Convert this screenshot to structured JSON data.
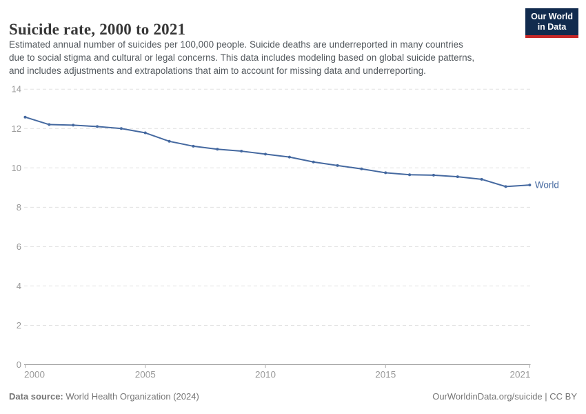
{
  "header": {
    "title": "Suicide rate, 2000 to 2021",
    "subtitle_lines": [
      "Estimated annual number of suicides per 100,000 people. Suicide deaths are underreported in many countries",
      "due to social stigma and cultural or legal concerns. This data includes modeling based on global suicide patterns,",
      "and includes adjustments and extrapolations that aim to account for missing data and underreporting."
    ],
    "logo": {
      "line1": "Our World",
      "line2": "in Data"
    }
  },
  "chart_data": {
    "type": "line",
    "title": "Suicide rate, 2000 to 2021",
    "xlabel": "",
    "ylabel": "",
    "xlim": [
      2000,
      2021
    ],
    "ylim": [
      0,
      14
    ],
    "x_ticks": [
      2000,
      2005,
      2010,
      2015,
      2021
    ],
    "y_ticks": [
      0,
      2,
      4,
      6,
      8,
      10,
      12,
      14
    ],
    "grid": "horizontal-dashed",
    "legend_position": "end-of-line",
    "x": [
      2000,
      2001,
      2002,
      2003,
      2004,
      2005,
      2006,
      2007,
      2008,
      2009,
      2010,
      2011,
      2012,
      2013,
      2014,
      2015,
      2016,
      2017,
      2018,
      2019,
      2020,
      2021
    ],
    "series": [
      {
        "name": "World",
        "color": "#4569a0",
        "values": [
          12.58,
          12.2,
          12.17,
          12.1,
          12.0,
          11.78,
          11.35,
          11.1,
          10.95,
          10.85,
          10.7,
          10.55,
          10.3,
          10.12,
          9.95,
          9.75,
          9.65,
          9.63,
          9.55,
          9.42,
          9.05,
          9.13
        ]
      }
    ]
  },
  "footer": {
    "data_source_label": "Data source:",
    "data_source_value": "World Health Organization (2024)",
    "license": "OurWorldinData.org/suicide | CC BY"
  },
  "colors": {
    "line": "#4569a0",
    "grid": "#e0e0e0",
    "axis_line": "#9e9e9e",
    "tick_mark": "#a8a8a8",
    "axis_label": "#9a9a9a",
    "logo_bg": "#112b4e",
    "logo_stripe": "#c62828"
  }
}
